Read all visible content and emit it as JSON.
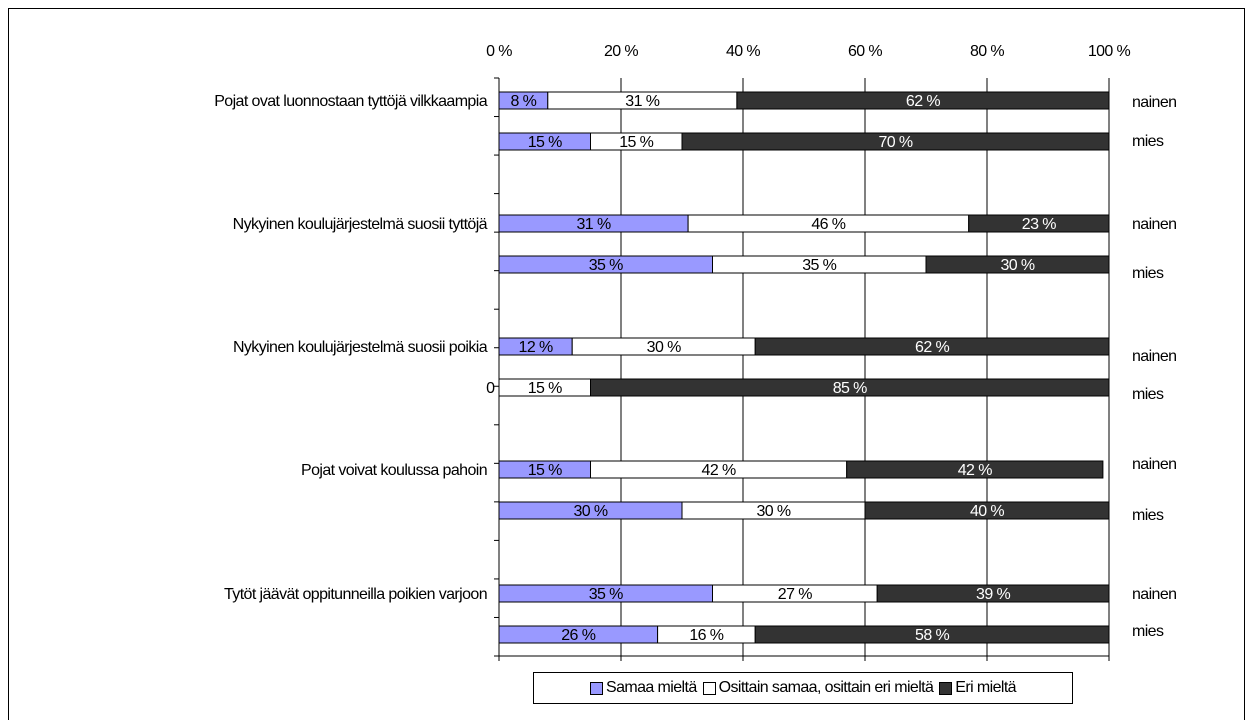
{
  "chart_data": {
    "type": "bar",
    "orientation": "horizontal",
    "stacked": true,
    "percent_stacked": true,
    "xlim": [
      0,
      100
    ],
    "x_ticks": [
      "0 %",
      "20 %",
      "40 %",
      "60 %",
      "80 %",
      "100 %"
    ],
    "grid": "vertical",
    "legend_position": "bottom",
    "series": [
      {
        "name": "Samaa mieltä",
        "color": "#9999ff"
      },
      {
        "name": "Osittain samaa, osittain eri mieltä",
        "color": "#ffffff"
      },
      {
        "name": "Eri mieltä",
        "color": "#333333"
      }
    ],
    "groups": [
      {
        "label": "Pojat ovat luonnostaan tyttöjä vilkkaampia",
        "bars": [
          {
            "gender": "nainen",
            "values": [
              8,
              31,
              62
            ],
            "labels": [
              "8 %",
              "31 %",
              "62 %"
            ]
          },
          {
            "gender": "mies",
            "values": [
              15,
              15,
              70
            ],
            "labels": [
              "15 %",
              "15 %",
              "70 %"
            ]
          }
        ]
      },
      {
        "label": "Nykyinen koulujärjestelmä suosii tyttöjä",
        "bars": [
          {
            "gender": "nainen",
            "values": [
              31,
              46,
              23
            ],
            "labels": [
              "31 %",
              "46 %",
              "23 %"
            ]
          },
          {
            "gender": "mies",
            "values": [
              35,
              35,
              30
            ],
            "labels": [
              "35 %",
              "35 %",
              "30 %"
            ]
          }
        ]
      },
      {
        "label": "Nykyinen koulujärjestelmä suosii poikia",
        "bars": [
          {
            "gender": "nainen",
            "values": [
              12,
              30,
              62
            ],
            "labels": [
              "12 %",
              "30 %",
              "62 %"
            ]
          },
          {
            "gender": "mies",
            "values": [
              0,
              15,
              85
            ],
            "labels": [
              "0 %",
              "15 %",
              "85 %"
            ]
          }
        ]
      },
      {
        "label": "Pojat voivat koulussa pahoin",
        "bars": [
          {
            "gender": "nainen",
            "values": [
              15,
              42,
              42
            ],
            "labels": [
              "15 %",
              "42 %",
              "42 %"
            ]
          },
          {
            "gender": "mies",
            "values": [
              30,
              30,
              40
            ],
            "labels": [
              "30 %",
              "30 %",
              "40 %"
            ]
          }
        ]
      },
      {
        "label": "Tytöt jäävät oppitunneilla poikien varjoon",
        "bars": [
          {
            "gender": "nainen",
            "values": [
              35,
              27,
              39
            ],
            "labels": [
              "35 %",
              "27 %",
              "39 %"
            ]
          },
          {
            "gender": "mies",
            "values": [
              26,
              16,
              58
            ],
            "labels": [
              "26 %",
              "16 %",
              "58 %"
            ]
          }
        ]
      }
    ]
  }
}
